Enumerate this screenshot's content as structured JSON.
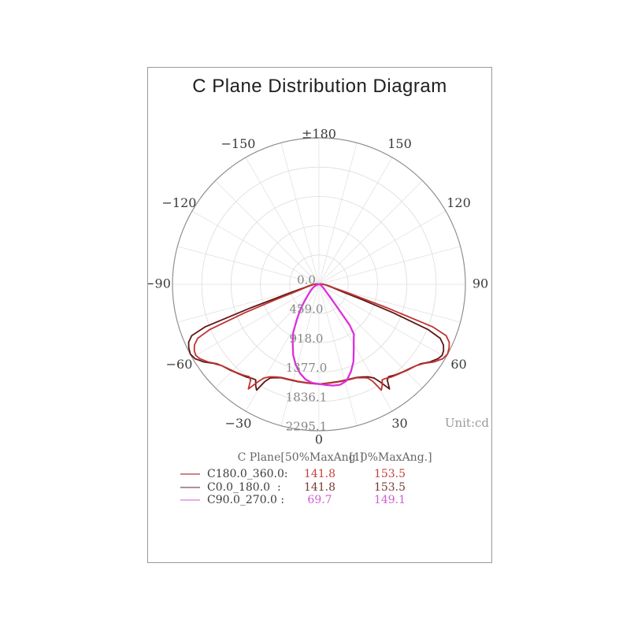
{
  "title": "C Plane Distribution Diagram",
  "unit_label": "Unit:cd",
  "polar": {
    "max_value": 2295.1,
    "ring_count": 5,
    "spoke_step_deg": 15,
    "ring_labels": [
      "0.0",
      "459.0",
      "918.0",
      "1377.0",
      "1836.1",
      "2295.1"
    ],
    "angle_labels": [
      {
        "deg": 180,
        "text": "±180"
      },
      {
        "deg": -150,
        "text": "−150"
      },
      {
        "deg": 150,
        "text": "150"
      },
      {
        "deg": -120,
        "text": "−120"
      },
      {
        "deg": 120,
        "text": "120"
      },
      {
        "deg": -90,
        "text": "−90"
      },
      {
        "deg": 90,
        "text": "90"
      },
      {
        "deg": -60,
        "text": "−60"
      },
      {
        "deg": 60,
        "text": "60"
      },
      {
        "deg": -30,
        "text": "−30"
      },
      {
        "deg": 30,
        "text": "30"
      },
      {
        "deg": 0,
        "text": "0"
      }
    ],
    "grid_color": "#dcdcdc",
    "spoke_color": "#e2e2e2",
    "outer_ring_color": "#8f8f8f",
    "ring_label_color": "#858585",
    "angle_label_color": "#3a3a3a",
    "unit_label_color": "#9a9a9a"
  },
  "legend": {
    "header": {
      "plane": "C Plane",
      "col50": "[50%MaxAng.]",
      "col10": "[10%MaxAng.]"
    },
    "rows": [
      {
        "label": "C180.0_360.0:",
        "v50": "141.8",
        "v10": "153.5",
        "swatch_color": "#d28282",
        "value_color": "#c84040"
      },
      {
        "label": "C0.0_180.0  :",
        "v50": "141.8",
        "v10": "153.5",
        "swatch_color": "#b29090",
        "value_color": "#7a3838"
      },
      {
        "label": "C90.0_270.0 :",
        "v50": "69.7",
        "v10": "149.1",
        "swatch_color": "#eaaaea",
        "value_color": "#cf5fcf"
      }
    ]
  },
  "chart_data": {
    "type": "line",
    "coordinate_system": "polar, 0 deg at bottom (nadir), ±180 at top, negative angles left",
    "radial_unit": "cd",
    "radial_ticks": [
      0.0,
      459.0,
      918.0,
      1377.0,
      1836.1,
      2295.1
    ],
    "radial_max": 2295.1,
    "title": "C Plane Distribution Diagram",
    "legend_position": "bottom",
    "series": [
      {
        "name": "C0.0_180.0",
        "color": "#5e1616",
        "width": 1.8,
        "points": [
          [
            -115,
            0
          ],
          [
            -110,
            5
          ],
          [
            -101,
            20
          ],
          [
            -93,
            55
          ],
          [
            -86,
            105
          ],
          [
            -81,
            165
          ],
          [
            -77,
            235
          ],
          [
            -74,
            420
          ],
          [
            -72.5,
            620
          ],
          [
            -71,
            1120
          ],
          [
            -69.5,
            1900
          ],
          [
            -68,
            2150
          ],
          [
            -66,
            2235
          ],
          [
            -64,
            2270
          ],
          [
            -61.5,
            2293
          ],
          [
            -59,
            2265
          ],
          [
            -56,
            2175
          ],
          [
            -53,
            2060
          ],
          [
            -50,
            1985
          ],
          [
            -46,
            1935
          ],
          [
            -42,
            1885
          ],
          [
            -38,
            1845
          ],
          [
            -35,
            1805
          ],
          [
            -33.5,
            1795
          ],
          [
            -32,
            1870
          ],
          [
            -30.5,
            1925
          ],
          [
            -29,
            1740
          ],
          [
            -27.5,
            1655
          ],
          [
            -25,
            1615
          ],
          [
            -22,
            1580
          ],
          [
            -18,
            1568
          ],
          [
            -12,
            1560
          ],
          [
            -6,
            1558
          ],
          [
            0,
            1565
          ],
          [
            6,
            1554
          ],
          [
            12,
            1556
          ],
          [
            18,
            1562
          ],
          [
            22,
            1574
          ],
          [
            25,
            1602
          ],
          [
            28,
            1642
          ],
          [
            30.5,
            1706
          ],
          [
            32,
            1800
          ],
          [
            34,
            1978
          ],
          [
            35.5,
            1845
          ],
          [
            37,
            1812
          ],
          [
            40,
            1855
          ],
          [
            44,
            1902
          ],
          [
            48,
            1952
          ],
          [
            52,
            2022
          ],
          [
            55,
            2122
          ],
          [
            58,
            2200
          ],
          [
            60,
            2228
          ],
          [
            62,
            2212
          ],
          [
            64,
            2170
          ],
          [
            66,
            2080
          ],
          [
            67.5,
            1850
          ],
          [
            69,
            1250
          ],
          [
            70.5,
            700
          ],
          [
            72,
            430
          ],
          [
            75,
            250
          ],
          [
            79,
            170
          ],
          [
            84,
            110
          ],
          [
            91,
            60
          ],
          [
            99,
            25
          ],
          [
            108,
            8
          ],
          [
            113,
            0
          ]
        ]
      },
      {
        "name": "C180.0_360.0",
        "color": "#c13232",
        "width": 1.8,
        "points": [
          [
            -113,
            0
          ],
          [
            -108,
            8
          ],
          [
            -99,
            25
          ],
          [
            -91,
            60
          ],
          [
            -84,
            110
          ],
          [
            -79,
            170
          ],
          [
            -75,
            250
          ],
          [
            -72,
            430
          ],
          [
            -70.5,
            700
          ],
          [
            -69,
            1250
          ],
          [
            -67.5,
            1850
          ],
          [
            -66,
            2080
          ],
          [
            -64,
            2170
          ],
          [
            -62,
            2212
          ],
          [
            -60,
            2228
          ],
          [
            -58,
            2200
          ],
          [
            -55,
            2122
          ],
          [
            -52,
            2022
          ],
          [
            -48,
            1952
          ],
          [
            -44,
            1902
          ],
          [
            -40,
            1855
          ],
          [
            -37,
            1812
          ],
          [
            -35.5,
            1845
          ],
          [
            -34,
            1978
          ],
          [
            -32,
            1800
          ],
          [
            -30.5,
            1706
          ],
          [
            -28,
            1642
          ],
          [
            -25,
            1602
          ],
          [
            -22,
            1574
          ],
          [
            -18,
            1562
          ],
          [
            -12,
            1556
          ],
          [
            -6,
            1554
          ],
          [
            0,
            1563
          ],
          [
            6,
            1558
          ],
          [
            12,
            1560
          ],
          [
            18,
            1568
          ],
          [
            22,
            1580
          ],
          [
            25,
            1615
          ],
          [
            27.5,
            1655
          ],
          [
            29,
            1740
          ],
          [
            30.5,
            1925
          ],
          [
            32,
            1870
          ],
          [
            33.5,
            1795
          ],
          [
            35,
            1805
          ],
          [
            38,
            1845
          ],
          [
            42,
            1885
          ],
          [
            46,
            1935
          ],
          [
            50,
            1985
          ],
          [
            53,
            2060
          ],
          [
            56,
            2175
          ],
          [
            59,
            2265
          ],
          [
            61.5,
            2293
          ],
          [
            64,
            2270
          ],
          [
            66,
            2235
          ],
          [
            68,
            2150
          ],
          [
            69.5,
            1900
          ],
          [
            71,
            1120
          ],
          [
            72.5,
            620
          ],
          [
            74,
            420
          ],
          [
            77,
            235
          ],
          [
            81,
            165
          ],
          [
            86,
            105
          ],
          [
            93,
            55
          ],
          [
            101,
            20
          ],
          [
            110,
            5
          ],
          [
            115,
            0
          ]
        ]
      },
      {
        "name": "C90.0_270.0",
        "color": "#dd2edd",
        "width": 2.3,
        "points": [
          [
            -104,
            0
          ],
          [
            -96,
            2
          ],
          [
            -88,
            7
          ],
          [
            -80,
            18
          ],
          [
            -72,
            42
          ],
          [
            -66,
            70
          ],
          [
            -60,
            105
          ],
          [
            -55,
            140
          ],
          [
            -50,
            185
          ],
          [
            -45,
            250
          ],
          [
            -40,
            360
          ],
          [
            -36,
            500
          ],
          [
            -32,
            660
          ],
          [
            -28,
            860
          ],
          [
            -24,
            1010
          ],
          [
            -20,
            1180
          ],
          [
            -16,
            1315
          ],
          [
            -12,
            1425
          ],
          [
            -8,
            1505
          ],
          [
            -4,
            1548
          ],
          [
            0,
            1561
          ],
          [
            4,
            1582
          ],
          [
            8,
            1602
          ],
          [
            12,
            1608
          ],
          [
            16,
            1572
          ],
          [
            20,
            1462
          ],
          [
            24,
            1330
          ],
          [
            28,
            1162
          ],
          [
            32,
            1030
          ],
          [
            35,
            955
          ],
          [
            37,
            800
          ],
          [
            39,
            420
          ],
          [
            42,
            220
          ],
          [
            46,
            130
          ],
          [
            52,
            80
          ],
          [
            60,
            45
          ],
          [
            70,
            22
          ],
          [
            80,
            10
          ],
          [
            90,
            4
          ],
          [
            100,
            0
          ]
        ]
      }
    ]
  }
}
